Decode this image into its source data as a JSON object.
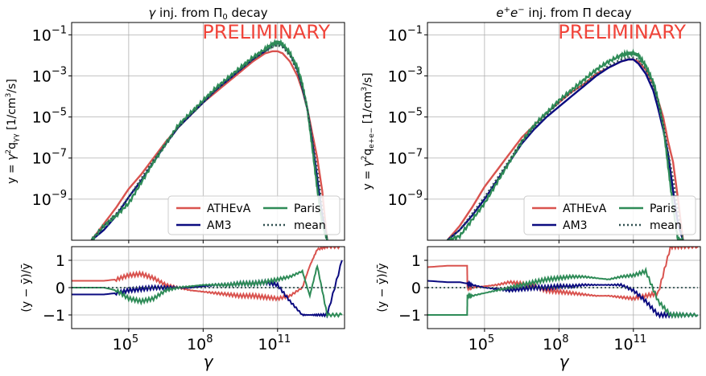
{
  "colors": {
    "ATHEvA": "#d9534f",
    "AM3": "#0b0b80",
    "Paris": "#2e8b57",
    "mean": "#2f4f4f",
    "preliminary": "#f0443a"
  },
  "chart_data": [
    {
      "type": "line",
      "title": "γ inj. from Π₀ decay",
      "title_parts": [
        "γ",
        " inj. from Π",
        "0",
        " decay"
      ],
      "annotation": "PRELIMINARY",
      "ylabel": "y = γ²q_γγ [1/cm³/s]",
      "ylabel_parts": [
        "y = ",
        "γ",
        "2",
        "q",
        "γγ",
        " [1/cm",
        "3",
        "/s]"
      ],
      "xlabel": "γ",
      "xscale": "log",
      "yscale": "log",
      "xlim_log10": [
        2.7,
        13.7
      ],
      "ylim_log10": [
        -11.0,
        -0.4
      ],
      "x_ticks_log10": [
        5,
        8,
        11
      ],
      "y_ticks_log10": [
        -9,
        -7,
        -5,
        -3,
        -1
      ],
      "legend": [
        "ATHEvA",
        "AM3",
        "Paris",
        "mean"
      ],
      "legend_position": "lower right",
      "series": [
        {
          "name": "ATHEvA",
          "x_log10": [
            3.5,
            4.0,
            4.5,
            5.0,
            5.5,
            6.0,
            6.5,
            7.0,
            7.5,
            8.0,
            8.5,
            9.0,
            9.5,
            10.0,
            10.5,
            10.8,
            11.0,
            11.2,
            11.5,
            11.8,
            12.0,
            12.2,
            12.4,
            12.6,
            12.8,
            13.0
          ],
          "y_log10": [
            -11.0,
            -10.2,
            -9.4,
            -8.5,
            -7.8,
            -7.0,
            -6.2,
            -5.5,
            -4.9,
            -4.3,
            -3.8,
            -3.3,
            -2.8,
            -2.3,
            -1.9,
            -1.8,
            -1.8,
            -1.9,
            -2.3,
            -3.0,
            -3.7,
            -4.6,
            -5.8,
            -7.0,
            -8.6,
            -11.0
          ]
        },
        {
          "name": "AM3",
          "x_log10": [
            3.5,
            4.0,
            4.5,
            5.0,
            5.5,
            6.0,
            6.5,
            7.0,
            7.5,
            8.0,
            8.5,
            9.0,
            9.5,
            10.0,
            10.5,
            10.8,
            11.0,
            11.2,
            11.5,
            11.8,
            12.0,
            12.2,
            12.4,
            12.6,
            12.8,
            13.0
          ],
          "y_log10": [
            -11.0,
            -10.5,
            -9.8,
            -8.9,
            -8.1,
            -7.2,
            -6.3,
            -5.5,
            -4.9,
            -4.3,
            -3.7,
            -3.2,
            -2.7,
            -2.2,
            -1.8,
            -1.5,
            -1.4,
            -1.5,
            -1.9,
            -2.7,
            -3.6,
            -4.6,
            -6.2,
            -8.0,
            -9.8,
            -11.0
          ]
        },
        {
          "name": "Paris",
          "x_log10": [
            3.5,
            4.0,
            4.5,
            5.0,
            5.5,
            6.0,
            6.5,
            7.0,
            7.5,
            8.0,
            8.5,
            9.0,
            9.5,
            10.0,
            10.5,
            10.8,
            11.0,
            11.2,
            11.5,
            11.8,
            12.0,
            12.2,
            12.4,
            12.6,
            12.8,
            13.0
          ],
          "y_log10": [
            -11.0,
            -10.3,
            -9.8,
            -9.2,
            -8.2,
            -7.2,
            -6.3,
            -5.4,
            -4.8,
            -4.2,
            -3.6,
            -3.1,
            -2.6,
            -2.1,
            -1.7,
            -1.45,
            -1.35,
            -1.45,
            -1.9,
            -2.6,
            -3.4,
            -4.6,
            -6.5,
            -8.5,
            -10.2,
            -11.0
          ]
        },
        {
          "name": "mean",
          "x_log10": [
            3.5,
            4.0,
            4.5,
            5.0,
            5.5,
            6.0,
            6.5,
            7.0,
            7.5,
            8.0,
            8.5,
            9.0,
            9.5,
            10.0,
            10.5,
            10.8,
            11.0,
            11.2,
            11.5,
            11.8,
            12.0,
            12.2,
            12.4,
            12.6,
            12.8,
            13.0
          ],
          "y_log10": [
            -11.0,
            -10.3,
            -9.7,
            -8.9,
            -8.0,
            -7.1,
            -6.3,
            -5.5,
            -4.9,
            -4.3,
            -3.7,
            -3.2,
            -2.7,
            -2.2,
            -1.8,
            -1.6,
            -1.5,
            -1.6,
            -2.0,
            -2.8,
            -3.6,
            -4.6,
            -6.0,
            -7.6,
            -9.4,
            -11.0
          ]
        }
      ],
      "residual": {
        "ylabel": "(y − ȳ)/ȳ",
        "ylim": [
          -1.5,
          1.5
        ],
        "y_ticks": [
          -1,
          0,
          1
        ],
        "x_log10": [
          2.7,
          3.5,
          4.0,
          4.5,
          5.0,
          5.5,
          6.0,
          6.5,
          7.0,
          7.5,
          8.0,
          8.5,
          9.0,
          9.5,
          10.0,
          10.5,
          11.0,
          11.5,
          12.0,
          12.3,
          12.6,
          13.0,
          13.6
        ],
        "series": [
          {
            "name": "ATHEvA",
            "values": [
              0.25,
              0.25,
              0.25,
              0.3,
              0.45,
              0.5,
              0.35,
              0.1,
              0.0,
              -0.1,
              -0.15,
              -0.2,
              -0.25,
              -0.3,
              -0.3,
              -0.35,
              -0.4,
              -0.3,
              0.0,
              0.8,
              1.4,
              1.5,
              1.5
            ]
          },
          {
            "name": "AM3",
            "values": [
              -0.25,
              -0.25,
              -0.25,
              -0.2,
              -0.1,
              -0.05,
              0.0,
              0.0,
              0.0,
              0.0,
              0.05,
              0.1,
              0.1,
              0.15,
              0.15,
              0.2,
              0.1,
              -0.5,
              -1.0,
              -1.0,
              -1.0,
              -1.0,
              1.0
            ]
          },
          {
            "name": "Paris",
            "values": [
              0.0,
              0.0,
              0.0,
              -0.1,
              -0.4,
              -0.5,
              -0.4,
              -0.1,
              0.0,
              0.05,
              0.1,
              0.1,
              0.1,
              0.15,
              0.15,
              0.2,
              0.3,
              0.4,
              0.6,
              -0.3,
              0.8,
              -1.0,
              -1.0
            ]
          },
          {
            "name": "mean",
            "values": [
              0,
              0,
              0,
              0,
              0,
              0,
              0,
              0,
              0,
              0,
              0,
              0,
              0,
              0,
              0,
              0,
              0,
              0,
              0,
              0,
              0,
              0,
              0
            ]
          }
        ]
      }
    },
    {
      "type": "line",
      "title": "e⁺e⁻ inj. from Π decay",
      "title_parts": [
        "e",
        "+",
        "e",
        "−",
        " inj. from Π decay"
      ],
      "annotation": "PRELIMINARY",
      "ylabel": "y = γ²q_e⁺e⁻ [1/cm³/s]",
      "ylabel_parts": [
        "y = ",
        "γ",
        "2",
        "q",
        "e+e−",
        " [1/cm",
        "3",
        "/s]"
      ],
      "xlabel": "γ",
      "xscale": "log",
      "yscale": "log",
      "xlim_log10": [
        2.7,
        13.7
      ],
      "ylim_log10": [
        -11.0,
        -0.4
      ],
      "x_ticks_log10": [
        5,
        8,
        11
      ],
      "y_ticks_log10": [
        -9,
        -7,
        -5,
        -3,
        -1
      ],
      "legend": [
        "ATHEvA",
        "AM3",
        "Paris",
        "mean"
      ],
      "legend_position": "lower right",
      "series": [
        {
          "name": "ATHEvA",
          "x_log10": [
            3.5,
            4.0,
            4.5,
            5.0,
            5.5,
            6.0,
            6.5,
            7.0,
            7.5,
            8.0,
            8.5,
            9.0,
            9.5,
            10.0,
            10.5,
            10.8,
            11.0,
            11.2,
            11.5,
            11.8,
            12.0,
            12.2,
            12.4,
            12.6,
            12.8,
            13.0
          ],
          "y_log10": [
            -11.0,
            -10.3,
            -9.4,
            -8.4,
            -7.6,
            -6.8,
            -6.0,
            -5.4,
            -4.8,
            -4.3,
            -3.8,
            -3.4,
            -2.9,
            -2.6,
            -2.3,
            -2.2,
            -2.2,
            -2.3,
            -2.7,
            -3.4,
            -4.2,
            -5.0,
            -6.2,
            -7.2,
            -9.0,
            -11.0
          ]
        },
        {
          "name": "AM3",
          "x_log10": [
            3.5,
            4.0,
            4.5,
            5.0,
            5.5,
            6.0,
            6.5,
            7.0,
            7.5,
            8.0,
            8.5,
            9.0,
            9.5,
            10.0,
            10.5,
            10.8,
            11.0,
            11.2,
            11.5,
            11.8,
            12.0,
            12.2,
            12.4,
            12.6,
            12.8,
            13.0
          ],
          "y_log10": [
            -11.0,
            -10.5,
            -9.8,
            -9.0,
            -8.1,
            -7.2,
            -6.3,
            -5.6,
            -5.0,
            -4.5,
            -4.0,
            -3.5,
            -3.0,
            -2.6,
            -2.3,
            -2.2,
            -2.2,
            -2.4,
            -2.9,
            -3.7,
            -4.6,
            -5.6,
            -6.8,
            -8.6,
            -10.2,
            -11.0
          ]
        },
        {
          "name": "Paris",
          "x_log10": [
            3.5,
            4.0,
            4.5,
            5.0,
            5.5,
            6.0,
            6.5,
            7.0,
            7.5,
            8.0,
            8.5,
            9.0,
            9.5,
            10.0,
            10.5,
            10.8,
            11.0,
            11.2,
            11.5,
            11.8,
            12.0,
            12.2,
            12.4,
            12.6,
            12.8,
            13.0
          ],
          "y_log10": [
            -11.0,
            -10.8,
            -10.0,
            -9.2,
            -8.2,
            -7.2,
            -6.2,
            -5.4,
            -4.8,
            -4.2,
            -3.7,
            -3.2,
            -2.7,
            -2.3,
            -2.0,
            -1.9,
            -1.9,
            -2.0,
            -2.5,
            -3.3,
            -4.2,
            -5.4,
            -7.4,
            -9.4,
            -11.0,
            -11.0
          ]
        },
        {
          "name": "mean",
          "x_log10": [
            3.5,
            4.0,
            4.5,
            5.0,
            5.5,
            6.0,
            6.5,
            7.0,
            7.5,
            8.0,
            8.5,
            9.0,
            9.5,
            10.0,
            10.5,
            10.8,
            11.0,
            11.2,
            11.5,
            11.8,
            12.0,
            12.2,
            12.4,
            12.6,
            12.8,
            13.0
          ],
          "y_log10": [
            -11.0,
            -10.5,
            -9.7,
            -8.9,
            -8.0,
            -7.1,
            -6.2,
            -5.5,
            -4.9,
            -4.3,
            -3.8,
            -3.4,
            -2.9,
            -2.5,
            -2.2,
            -2.1,
            -2.1,
            -2.2,
            -2.7,
            -3.5,
            -4.3,
            -5.3,
            -6.7,
            -8.0,
            -9.6,
            -11.0
          ]
        }
      ],
      "residual": {
        "ylabel": "(y − ȳ)/ȳ",
        "ylim": [
          -1.5,
          1.5
        ],
        "y_ticks": [
          -1,
          0,
          1
        ],
        "x_log10": [
          2.7,
          3.5,
          4.0,
          4.3,
          4.31,
          4.5,
          5.0,
          5.5,
          6.0,
          6.5,
          7.0,
          7.5,
          8.0,
          8.5,
          9.0,
          9.5,
          10.0,
          10.5,
          11.0,
          11.5,
          12.0,
          12.5,
          13.0,
          13.6
        ],
        "series": [
          {
            "name": "ATHEvA",
            "values": [
              0.75,
              0.8,
              0.8,
              0.8,
              0.0,
              0.0,
              0.05,
              0.1,
              0.2,
              0.15,
              0.05,
              -0.1,
              -0.15,
              -0.2,
              -0.25,
              -0.3,
              -0.3,
              -0.35,
              -0.4,
              -0.3,
              -0.2,
              1.5,
              1.5,
              1.5
            ]
          },
          {
            "name": "AM3",
            "values": [
              0.25,
              0.2,
              0.2,
              0.15,
              0.15,
              0.1,
              0.0,
              -0.05,
              -0.1,
              -0.05,
              0.0,
              0.0,
              0.05,
              0.05,
              0.1,
              0.1,
              0.1,
              0.1,
              -0.1,
              -0.5,
              -1.0,
              -1.0,
              -1.0,
              -1.0
            ]
          },
          {
            "name": "Paris",
            "values": [
              -1.0,
              -1.0,
              -1.0,
              -1.0,
              -0.3,
              -0.3,
              -0.2,
              -0.1,
              0.0,
              0.1,
              0.2,
              0.3,
              0.35,
              0.4,
              0.4,
              0.35,
              0.3,
              0.4,
              0.45,
              0.6,
              -0.5,
              -1.0,
              -1.0,
              -1.0
            ]
          },
          {
            "name": "mean",
            "values": [
              0,
              0,
              0,
              0,
              0,
              0,
              0,
              0,
              0,
              0,
              0,
              0,
              0,
              0,
              0,
              0,
              0,
              0,
              0,
              0,
              0,
              0,
              0,
              0
            ]
          }
        ]
      }
    }
  ]
}
